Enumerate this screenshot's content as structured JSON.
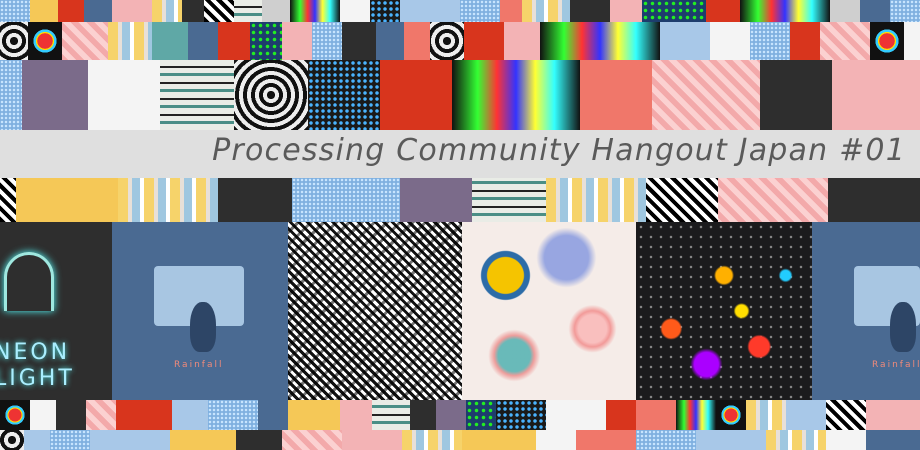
{
  "banner": {
    "title": "Processing Community Hangout Japan #01"
  },
  "artworks": {
    "neon_light_text_top": "NEON",
    "neon_light_text_bottom": "LIGHT",
    "rainfall_text": "Rainfall"
  },
  "colors": {
    "banner_bg": "#eeeeee",
    "title_text": "#5a5a5a",
    "neon_cyan": "#9fe8e0",
    "rain_blue": "#4a6a92"
  }
}
